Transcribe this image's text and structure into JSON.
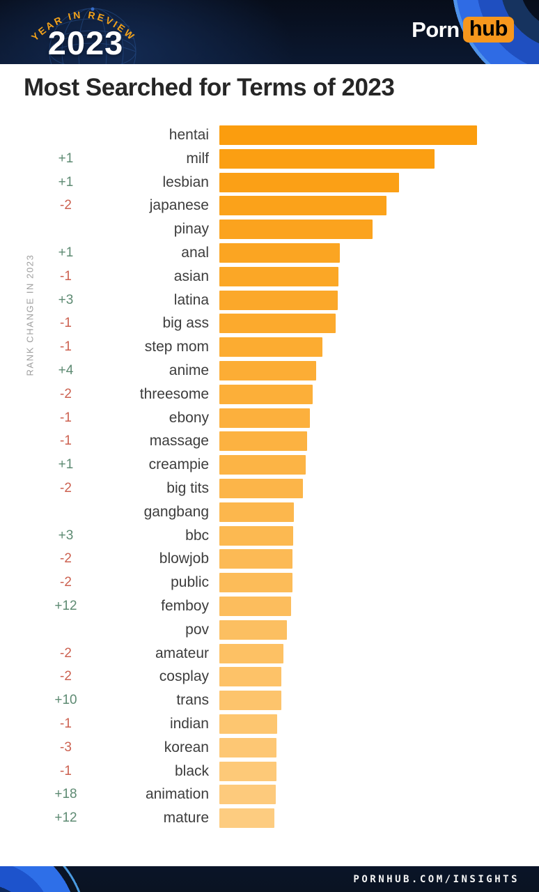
{
  "header": {
    "arc_text": "YEAR IN REVIEW",
    "year": "2023",
    "brand_porn": "Porn",
    "brand_hub": "hub",
    "accent_orange": "#f7971d",
    "background_navy": "#0b1830"
  },
  "title": "Most Searched for Terms of 2023",
  "chart_data": {
    "type": "bar",
    "orientation": "horizontal",
    "title": "Most Searched for Terms of 2023",
    "axis_label": "RANK CHANGE IN 2023",
    "legend": "none",
    "grid": false,
    "value_unit": "relative bar length (px as drawn, no numeric axis shown)",
    "max_value": 370,
    "bar_color_top": "#FB9D0E",
    "bar_color_bottom": "#FDCC80",
    "positive_color": "#5D8A72",
    "negative_color": "#CC6150",
    "rows": [
      {
        "rank": 1,
        "term": "hentai",
        "change": "",
        "value": 370
      },
      {
        "rank": 2,
        "term": "milf",
        "change": "+1",
        "value": 309
      },
      {
        "rank": 3,
        "term": "lesbian",
        "change": "+1",
        "value": 258
      },
      {
        "rank": 4,
        "term": "japanese",
        "change": "-2",
        "value": 240
      },
      {
        "rank": 5,
        "term": "pinay",
        "change": "",
        "value": 220
      },
      {
        "rank": 6,
        "term": "anal",
        "change": "+1",
        "value": 173
      },
      {
        "rank": 7,
        "term": "asian",
        "change": "-1",
        "value": 171
      },
      {
        "rank": 8,
        "term": "latina",
        "change": "+3",
        "value": 170
      },
      {
        "rank": 9,
        "term": "big ass",
        "change": "-1",
        "value": 167
      },
      {
        "rank": 10,
        "term": "step mom",
        "change": "-1",
        "value": 148
      },
      {
        "rank": 11,
        "term": "anime",
        "change": "+4",
        "value": 139
      },
      {
        "rank": 12,
        "term": "threesome",
        "change": "-2",
        "value": 134
      },
      {
        "rank": 13,
        "term": "ebony",
        "change": "-1",
        "value": 130
      },
      {
        "rank": 14,
        "term": "massage",
        "change": "-1",
        "value": 126
      },
      {
        "rank": 15,
        "term": "creampie",
        "change": "+1",
        "value": 124
      },
      {
        "rank": 16,
        "term": "big tits",
        "change": "-2",
        "value": 120
      },
      {
        "rank": 17,
        "term": "gangbang",
        "change": "",
        "value": 107
      },
      {
        "rank": 18,
        "term": "bbc",
        "change": "+3",
        "value": 106
      },
      {
        "rank": 19,
        "term": "blowjob",
        "change": "-2",
        "value": 105
      },
      {
        "rank": 20,
        "term": "public",
        "change": "-2",
        "value": 105
      },
      {
        "rank": 21,
        "term": "femboy",
        "change": "+12",
        "value": 103
      },
      {
        "rank": 22,
        "term": "pov",
        "change": "",
        "value": 97
      },
      {
        "rank": 23,
        "term": "amateur",
        "change": "-2",
        "value": 92
      },
      {
        "rank": 24,
        "term": "cosplay",
        "change": "-2",
        "value": 89
      },
      {
        "rank": 25,
        "term": "trans",
        "change": "+10",
        "value": 89
      },
      {
        "rank": 26,
        "term": "indian",
        "change": "-1",
        "value": 83
      },
      {
        "rank": 27,
        "term": "korean",
        "change": "-3",
        "value": 82
      },
      {
        "rank": 28,
        "term": "black",
        "change": "-1",
        "value": 82
      },
      {
        "rank": 29,
        "term": "animation",
        "change": "+18",
        "value": 81
      },
      {
        "rank": 30,
        "term": "mature",
        "change": "+12",
        "value": 79
      }
    ]
  },
  "footer": {
    "url": "PORNHUB.COM/INSIGHTS"
  }
}
